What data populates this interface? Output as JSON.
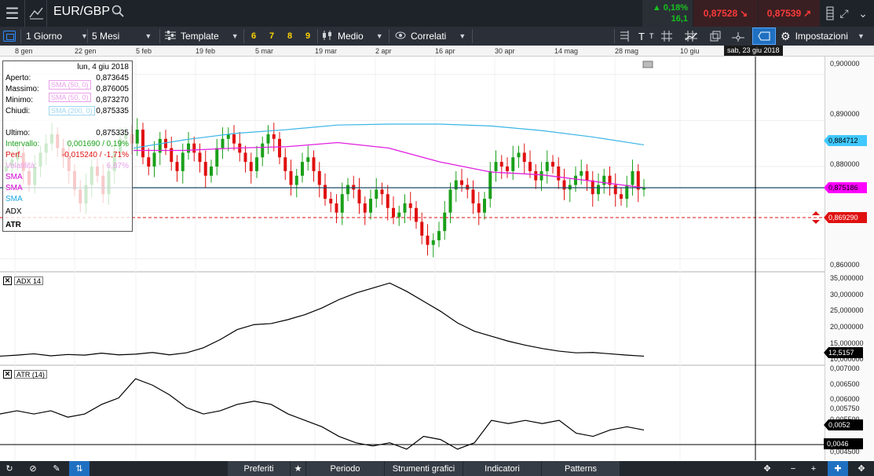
{
  "header": {
    "symbol": "EUR/GBP",
    "change_pct": "0,18%",
    "change_abs": "16,1",
    "bid": "0,87528",
    "ask": "0,87539"
  },
  "toolbar": {
    "interval": "1 Giorno",
    "range": "5 Mesi",
    "template": "Template",
    "quick_periods": [
      "6",
      "7",
      "8",
      "9"
    ],
    "chart_style": "Medio",
    "correlated": "Correlati",
    "settings": "Impostazioni"
  },
  "date_axis": {
    "labels": [
      "8 gen",
      "22 gen",
      "5 feb",
      "19 feb",
      "5 mar",
      "19 mar",
      "2 apr",
      "16 apr",
      "30 apr",
      "14 mag",
      "28 mag",
      "10 giu"
    ],
    "crosshair_date": "sab, 23 giu 2018"
  },
  "info_box": {
    "date": "lun, 4 giu 2018",
    "rows": [
      {
        "label": "Aperto:",
        "value": "0,873645"
      },
      {
        "label": "Massimo:",
        "value": "0,876005"
      },
      {
        "label": "Minimo:",
        "value": "0,873270"
      },
      {
        "label": "Chiudi:",
        "value": "0,875335"
      }
    ],
    "last_label": "Ultimo:",
    "last_value": "0,875335",
    "range_label": "Intervallo:",
    "range_value": "0,001690 / 0,19%",
    "perf_label": "Perf.",
    "perf_value": "-0,015240 / -1,71%",
    "vol_label": "Volatilità:",
    "vol_value": "6,87%",
    "overlay_labels": [
      "SMA (50, 0)",
      "SMA (50, 0)",
      "SMA (200, 0)"
    ],
    "indicators": [
      {
        "name": "SMA",
        "color": "#d400d4"
      },
      {
        "name": "SMA",
        "color": "#d400d4"
      },
      {
        "name": "SMA",
        "color": "#19a9e0"
      },
      {
        "name": "ADX",
        "color": "#000000"
      },
      {
        "name": "ATR",
        "color": "#000000"
      }
    ]
  },
  "price_axis": {
    "ticks": [
      "0,900000",
      "0,890000",
      "0,880000",
      "0,860000"
    ],
    "sma200_tag": "0,884712",
    "last_tag": "0,875186",
    "crosshair_tag": "0,869290"
  },
  "adx_panel": {
    "label": "ADX 14",
    "ticks": [
      "35,000000",
      "30,000000",
      "25,000000",
      "20,000000",
      "15,000000"
    ],
    "current_tag": "12,5157",
    "under_tag": "10,000000"
  },
  "atr_panel": {
    "label": "ATR (14)",
    "ticks": [
      "0,007000",
      "0,006500",
      "0,006000",
      "0,005750",
      "0,005500"
    ],
    "current_tag": "0,0052",
    "crosshair_tag": "0,0046",
    "under_tag": "0,004500"
  },
  "bottom_bar": {
    "tabs": [
      "Preferiti",
      "Periodo",
      "Strumenti grafici",
      "Indicatori",
      "Patterns"
    ]
  },
  "colors": {
    "up": "#1aa01a",
    "down": "#e01010",
    "sma50": "#e020e0",
    "sma200": "#3ab4e6",
    "last_price_line": "#1a4a66"
  },
  "chart_data": {
    "type": "candlestick",
    "x_range": [
      "2018-01-02",
      "2018-06-29"
    ],
    "ylim": [
      0.8575,
      0.9025
    ],
    "overlays": [
      {
        "name": "SMA (50, 0)",
        "x": [
          0,
          0.1,
          0.2,
          0.3,
          0.4,
          0.5,
          0.6,
          0.7,
          0.8,
          0.9,
          1.0
        ],
        "y": [
          0.8835,
          0.8835,
          0.884,
          0.8843,
          0.8852,
          0.884,
          0.881,
          0.8788,
          0.8782,
          0.8768,
          0.8754
        ]
      },
      {
        "name": "SMA (200, 0)",
        "x": [
          0,
          0.1,
          0.2,
          0.3,
          0.4,
          0.5,
          0.6,
          0.7,
          0.8,
          0.9,
          1.0
        ],
        "y": [
          0.884,
          0.8858,
          0.8872,
          0.888,
          0.889,
          0.8892,
          0.8892,
          0.8888,
          0.8878,
          0.8864,
          0.8847
        ]
      }
    ],
    "adx": {
      "ylim": [
        10,
        36
      ],
      "values": [
        12.5,
        12.8,
        13.2,
        12.6,
        13.0,
        12.8,
        13.4,
        12.9,
        13.1,
        13.6,
        12.9,
        13.5,
        15.0,
        17.5,
        20.5,
        22.0,
        22.3,
        23.5,
        25.0,
        27.0,
        29.5,
        31.5,
        33.0,
        34.5,
        32.0,
        29.0,
        26.0,
        22.5,
        20.0,
        18.5,
        17.0,
        15.8,
        14.8,
        14.0,
        13.5,
        13.6,
        13.2,
        12.8,
        12.5
      ]
    },
    "atr": {
      "ylim": [
        0.0044,
        0.0071
      ],
      "values": [
        0.0057,
        0.0058,
        0.0057,
        0.0058,
        0.0056,
        0.0057,
        0.006,
        0.0062,
        0.0068,
        0.0066,
        0.0063,
        0.0059,
        0.0057,
        0.0058,
        0.006,
        0.0061,
        0.006,
        0.0057,
        0.0055,
        0.0053,
        0.005,
        0.0048,
        0.0047,
        0.0048,
        0.0046,
        0.005,
        0.0049,
        0.0046,
        0.0048,
        0.0055,
        0.0054,
        0.0055,
        0.0054,
        0.0055,
        0.0051,
        0.005,
        0.0052,
        0.0053,
        0.0052
      ]
    }
  }
}
